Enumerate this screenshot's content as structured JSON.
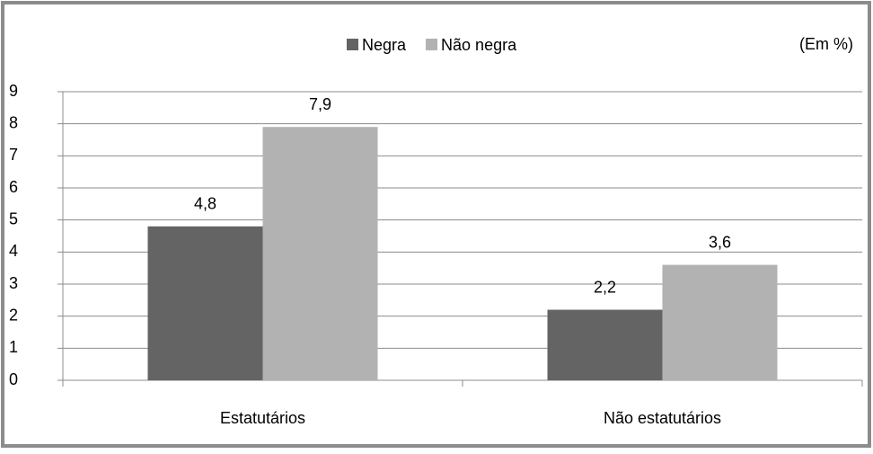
{
  "chart_data": {
    "type": "bar",
    "annotation": "(Em %)",
    "categories": [
      "Estatutários",
      "Não estatutários"
    ],
    "series": [
      {
        "name": "Negra",
        "color": "#646464",
        "values": [
          4.8,
          2.2
        ],
        "value_labels": [
          "4,8",
          "2,2"
        ]
      },
      {
        "name": "Não negra",
        "color": "#b2b2b2",
        "values": [
          7.9,
          3.6
        ],
        "value_labels": [
          "7,9",
          "3,6"
        ]
      }
    ],
    "ylim": [
      0,
      9
    ],
    "yticks": [
      0,
      1,
      2,
      3,
      4,
      5,
      6,
      7,
      8,
      9
    ],
    "grid": true,
    "legend": "top"
  }
}
